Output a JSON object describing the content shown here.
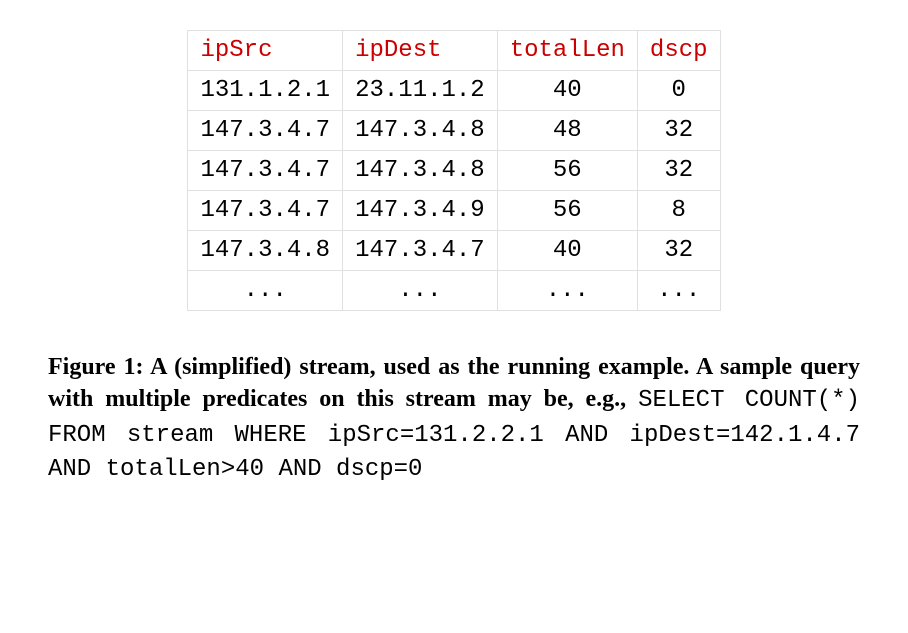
{
  "table": {
    "header_color": "#cc0000",
    "border_color": "#e0e0e0",
    "columns": [
      "ipSrc",
      "ipDest",
      "totalLen",
      "dscp"
    ],
    "rows": [
      [
        "131.1.2.1",
        "23.11.1.2",
        "40",
        "0"
      ],
      [
        "147.3.4.7",
        "147.3.4.8",
        "48",
        "32"
      ],
      [
        "147.3.4.7",
        "147.3.4.8",
        "56",
        "32"
      ],
      [
        "147.3.4.7",
        "147.3.4.9",
        "56",
        "8"
      ],
      [
        "147.3.4.8",
        "147.3.4.7",
        "40",
        "32"
      ],
      [
        "...",
        "...",
        "...",
        "..."
      ]
    ]
  },
  "caption": {
    "lead": "Figure 1: A (simplified) stream, used as the running example. A sample query with multiple predicates on this stream may be, e.g.,",
    "sql": "SELECT COUNT(*) FROM stream WHERE ipSrc=131.2.2.1 AND ipDest=142.1.4.7 AND totalLen>40 AND dscp=0"
  }
}
